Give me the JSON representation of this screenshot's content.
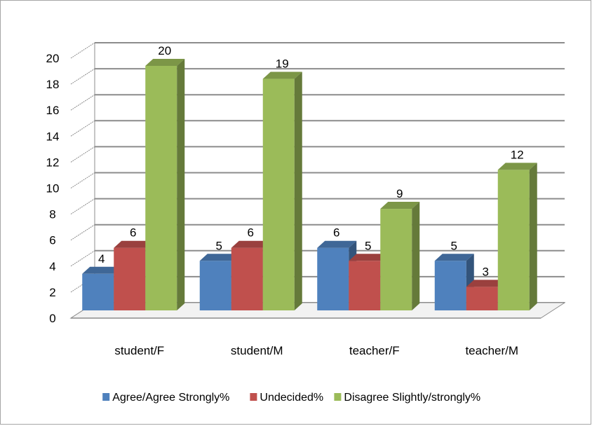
{
  "chart_data": {
    "type": "bar",
    "categories": [
      "student/F",
      "student/M",
      "teacher/F",
      "teacher/M"
    ],
    "series": [
      {
        "name": "Agree/Agree Strongly%",
        "values": [
          4,
          5,
          6,
          5
        ],
        "color": "#4f81bd"
      },
      {
        "name": "Undecided%",
        "values": [
          6,
          6,
          5,
          3
        ],
        "color": "#c0504d"
      },
      {
        "name": "Disagree Slightly/strongly%",
        "values": [
          20,
          19,
          9,
          12
        ],
        "color": "#9bbb59"
      }
    ],
    "ylim": [
      0,
      20
    ],
    "yticks": [
      0,
      2,
      4,
      6,
      8,
      10,
      12,
      14,
      16,
      18,
      20
    ],
    "grid": true,
    "style": "3d-clustered-column",
    "legend_position": "bottom",
    "data_labels": true
  }
}
